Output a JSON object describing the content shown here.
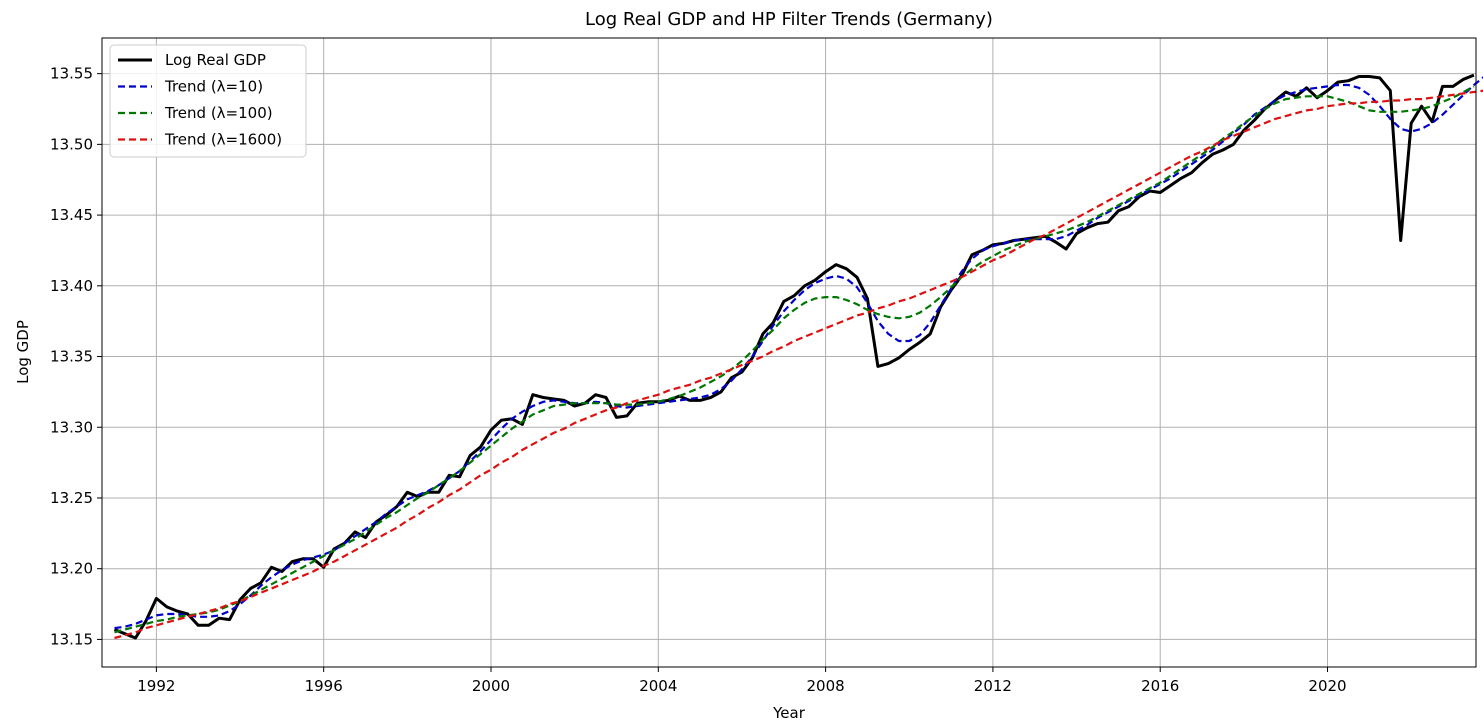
{
  "chart_data": {
    "type": "line",
    "title": "Log Real GDP and HP Filter Trends (Germany)",
    "xlabel": "Year",
    "ylabel": "Log GDP",
    "xlim": [
      1990.7,
      2023.55
    ],
    "ylim": [
      13.1305,
      13.5752
    ],
    "x_ticks": [
      1992,
      1996,
      2000,
      2004,
      2008,
      2012,
      2016,
      2020
    ],
    "y_ticks": [
      13.15,
      13.2,
      13.25,
      13.3,
      13.35,
      13.4,
      13.45,
      13.5,
      13.55
    ],
    "grid": true,
    "legend_position": "top-left",
    "x_start": 1991.0,
    "x_step": 0.25,
    "series": [
      {
        "name": "Log Real GDP",
        "color": "#000000",
        "style": "solid",
        "values": [
          13.157,
          13.154,
          13.151,
          13.163,
          13.179,
          13.173,
          13.17,
          13.168,
          13.16,
          13.16,
          13.165,
          13.164,
          13.178,
          13.186,
          13.19,
          13.201,
          13.198,
          13.205,
          13.207,
          13.207,
          13.201,
          13.214,
          13.218,
          13.226,
          13.222,
          13.233,
          13.238,
          13.244,
          13.254,
          13.251,
          13.254,
          13.254,
          13.266,
          13.265,
          13.28,
          13.286,
          13.298,
          13.305,
          13.306,
          13.302,
          13.323,
          13.321,
          13.32,
          13.319,
          13.315,
          13.317,
          13.323,
          13.321,
          13.307,
          13.308,
          13.317,
          13.318,
          13.318,
          13.319,
          13.322,
          13.319,
          13.319,
          13.321,
          13.325,
          13.335,
          13.339,
          13.349,
          13.366,
          13.374,
          13.389,
          13.393,
          13.4,
          13.404,
          13.41,
          13.415,
          13.412,
          13.406,
          13.391,
          13.343,
          13.345,
          13.349,
          13.355,
          13.36,
          13.366,
          13.385,
          13.397,
          13.407,
          13.422,
          13.425,
          13.429,
          13.43,
          13.432,
          13.433,
          13.434,
          13.435,
          13.431,
          13.426,
          13.437,
          13.441,
          13.444,
          13.445,
          13.453,
          13.456,
          13.463,
          13.467,
          13.466,
          13.471,
          13.476,
          13.48,
          13.487,
          13.493,
          13.496,
          13.5,
          13.51,
          13.517,
          13.525,
          13.531,
          13.537,
          13.534,
          13.54,
          13.533,
          13.538,
          13.544,
          13.545,
          13.548,
          13.548,
          13.547,
          13.538,
          13.432,
          13.515,
          13.527,
          13.516,
          13.541,
          13.541,
          13.546,
          13.549
        ]
      },
      {
        "name": "Trend (λ=10)",
        "color": "#0000cc",
        "style": "dashed",
        "values": [
          13.158,
          13.159,
          13.161,
          13.164,
          13.167,
          13.168,
          13.168,
          13.167,
          13.166,
          13.166,
          13.167,
          13.17,
          13.175,
          13.181,
          13.188,
          13.194,
          13.199,
          13.203,
          13.206,
          13.208,
          13.21,
          13.213,
          13.218,
          13.223,
          13.228,
          13.233,
          13.239,
          13.244,
          13.249,
          13.252,
          13.255,
          13.259,
          13.264,
          13.269,
          13.276,
          13.283,
          13.291,
          13.299,
          13.306,
          13.311,
          13.315,
          13.318,
          13.319,
          13.318,
          13.317,
          13.317,
          13.318,
          13.317,
          13.315,
          13.314,
          13.315,
          13.316,
          13.317,
          13.318,
          13.319,
          13.32,
          13.321,
          13.323,
          13.327,
          13.333,
          13.341,
          13.35,
          13.361,
          13.372,
          13.382,
          13.39,
          13.397,
          13.402,
          13.405,
          13.407,
          13.405,
          13.399,
          13.388,
          13.375,
          13.366,
          13.361,
          13.361,
          13.365,
          13.374,
          13.386,
          13.398,
          13.41,
          13.419,
          13.425,
          13.428,
          13.43,
          13.432,
          13.433,
          13.433,
          13.433,
          13.433,
          13.435,
          13.439,
          13.443,
          13.448,
          13.452,
          13.456,
          13.46,
          13.464,
          13.468,
          13.472,
          13.476,
          13.481,
          13.486,
          13.491,
          13.496,
          13.502,
          13.508,
          13.514,
          13.521,
          13.526,
          13.531,
          13.535,
          13.537,
          13.539,
          13.54,
          13.541,
          13.542,
          13.542,
          13.54,
          13.535,
          13.527,
          13.518,
          13.511,
          13.509,
          13.511,
          13.515,
          13.521,
          13.528,
          13.535,
          13.542,
          13.548,
          13.552
        ]
      },
      {
        "name": "Trend (λ=100)",
        "color": "#007700",
        "style": "dashed",
        "values": [
          13.155,
          13.157,
          13.159,
          13.161,
          13.163,
          13.164,
          13.166,
          13.167,
          13.168,
          13.169,
          13.171,
          13.174,
          13.177,
          13.181,
          13.185,
          13.189,
          13.193,
          13.197,
          13.201,
          13.205,
          13.209,
          13.213,
          13.217,
          13.221,
          13.226,
          13.231,
          13.236,
          13.24,
          13.245,
          13.25,
          13.254,
          13.259,
          13.264,
          13.269,
          13.275,
          13.281,
          13.287,
          13.293,
          13.299,
          13.304,
          13.309,
          13.312,
          13.315,
          13.316,
          13.317,
          13.317,
          13.317,
          13.317,
          13.316,
          13.316,
          13.316,
          13.317,
          13.318,
          13.32,
          13.322,
          13.325,
          13.328,
          13.332,
          13.336,
          13.341,
          13.347,
          13.354,
          13.362,
          13.369,
          13.377,
          13.383,
          13.388,
          13.391,
          13.392,
          13.392,
          13.39,
          13.387,
          13.383,
          13.38,
          13.378,
          13.377,
          13.378,
          13.381,
          13.386,
          13.392,
          13.399,
          13.406,
          13.412,
          13.417,
          13.421,
          13.425,
          13.428,
          13.431,
          13.433,
          13.435,
          13.437,
          13.439,
          13.442,
          13.445,
          13.449,
          13.453,
          13.457,
          13.461,
          13.465,
          13.469,
          13.473,
          13.478,
          13.483,
          13.488,
          13.493,
          13.498,
          13.504,
          13.509,
          13.515,
          13.52,
          13.525,
          13.529,
          13.532,
          13.533,
          13.534,
          13.534,
          13.534,
          13.532,
          13.53,
          13.527,
          13.524,
          13.523,
          13.523,
          13.523,
          13.524,
          13.525,
          13.527,
          13.53,
          13.533,
          13.537,
          13.541
        ]
      },
      {
        "name": "Trend (λ=1600)",
        "color": "#dd1111",
        "style": "dashed",
        "values": [
          13.151,
          13.153,
          13.155,
          13.158,
          13.16,
          13.162,
          13.164,
          13.166,
          13.168,
          13.17,
          13.172,
          13.175,
          13.177,
          13.18,
          13.183,
          13.186,
          13.189,
          13.192,
          13.195,
          13.198,
          13.202,
          13.205,
          13.209,
          13.213,
          13.217,
          13.221,
          13.225,
          13.229,
          13.234,
          13.238,
          13.243,
          13.247,
          13.252,
          13.256,
          13.261,
          13.266,
          13.27,
          13.275,
          13.279,
          13.284,
          13.288,
          13.292,
          13.296,
          13.299,
          13.303,
          13.306,
          13.309,
          13.312,
          13.314,
          13.317,
          13.319,
          13.321,
          13.323,
          13.326,
          13.328,
          13.33,
          13.333,
          13.335,
          13.338,
          13.341,
          13.344,
          13.347,
          13.35,
          13.354,
          13.357,
          13.361,
          13.364,
          13.367,
          13.37,
          13.373,
          13.376,
          13.379,
          13.381,
          13.384,
          13.386,
          13.389,
          13.391,
          13.394,
          13.397,
          13.4,
          13.403,
          13.406,
          13.41,
          13.414,
          13.418,
          13.421,
          13.425,
          13.429,
          13.433,
          13.436,
          13.44,
          13.444,
          13.448,
          13.452,
          13.456,
          13.46,
          13.464,
          13.468,
          13.472,
          13.476,
          13.48,
          13.484,
          13.488,
          13.492,
          13.495,
          13.499,
          13.503,
          13.506,
          13.509,
          13.512,
          13.515,
          13.518,
          13.52,
          13.522,
          13.524,
          13.525,
          13.527,
          13.528,
          13.529,
          13.529,
          13.53,
          13.53,
          13.531,
          13.531,
          13.532,
          13.532,
          13.533,
          13.534,
          13.535,
          13.536,
          13.537,
          13.538,
          13.539
        ]
      }
    ]
  }
}
